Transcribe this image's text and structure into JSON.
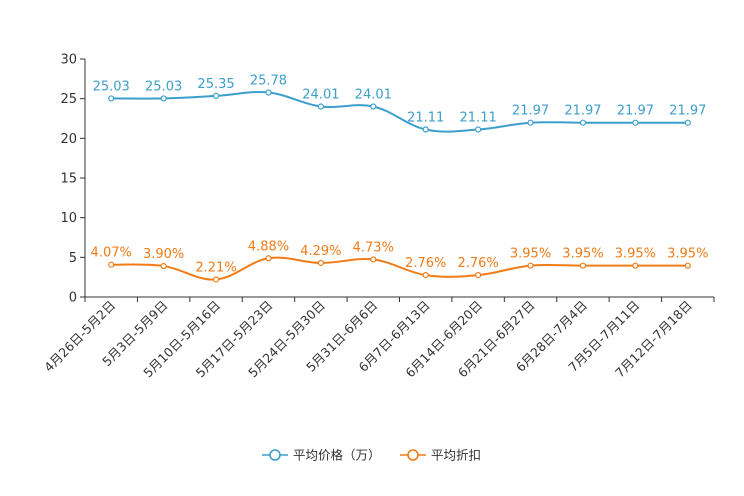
{
  "chart_data": {
    "type": "line",
    "title": "",
    "xlabel": "",
    "ylabel": "",
    "ylim": [
      0,
      30
    ],
    "yticks": [
      0,
      5,
      10,
      15,
      20,
      25,
      30
    ],
    "grid": false,
    "legend_position": "bottom-center",
    "categories": [
      "4月26日-5月2日",
      "5月3日-5月9日",
      "5月10日-5月16日",
      "5月17日-5月23日",
      "5月24日-5月30日",
      "5月31日-6月6日",
      "6月7日-6月13日",
      "6月14日-6月20日",
      "6月21日-6月27日",
      "6月28日-7月4日",
      "7月5日-7月11日",
      "7月12日-7月18日"
    ],
    "series": [
      {
        "name": "平均价格（万）",
        "color": "#3c9fcb",
        "values": [
          25.03,
          25.03,
          25.35,
          25.78,
          24.01,
          24.01,
          21.11,
          21.11,
          21.97,
          21.97,
          21.97,
          21.97
        ],
        "labels": [
          "25.03",
          "25.03",
          "25.35",
          "25.78",
          "24.01",
          "24.01",
          "21.11",
          "21.11",
          "21.97",
          "21.97",
          "21.97",
          "21.97"
        ]
      },
      {
        "name": "平均折扣",
        "color": "#f07b17",
        "values": [
          4.07,
          3.9,
          2.21,
          4.88,
          4.29,
          4.73,
          2.76,
          2.76,
          3.95,
          3.95,
          3.95,
          3.95
        ],
        "labels": [
          "4.07%",
          "3.90%",
          "2.21%",
          "4.88%",
          "4.29%",
          "4.73%",
          "2.76%",
          "2.76%",
          "3.95%",
          "3.95%",
          "3.95%",
          "3.95%"
        ]
      }
    ]
  }
}
